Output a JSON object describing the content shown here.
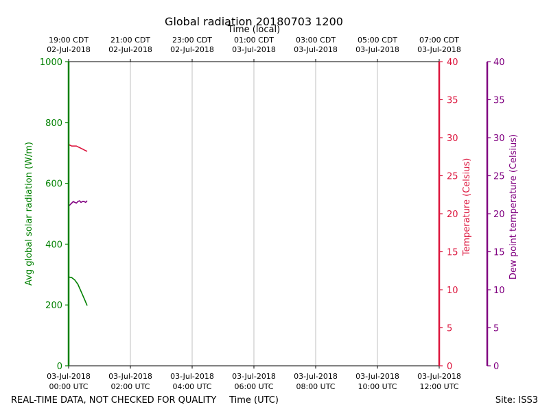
{
  "chart_data": {
    "type": "line",
    "title": "Global radiation 20180703 1200",
    "top_axis_label": "Time (local)",
    "xlabel": "Time (UTC)",
    "footer_left": "REAL-TIME DATA, NOT CHECKED FOR QUALITY",
    "footer_right": "Site: ISS3",
    "x_range_hours": [
      0,
      12
    ],
    "grid": "vertical",
    "top_ticks": [
      {
        "hour": 0,
        "line1": "19:00 CDT",
        "line2": "02-Jul-2018"
      },
      {
        "hour": 2,
        "line1": "21:00 CDT",
        "line2": "02-Jul-2018"
      },
      {
        "hour": 4,
        "line1": "23:00 CDT",
        "line2": "02-Jul-2018"
      },
      {
        "hour": 6,
        "line1": "01:00 CDT",
        "line2": "03-Jul-2018"
      },
      {
        "hour": 8,
        "line1": "03:00 CDT",
        "line2": "03-Jul-2018"
      },
      {
        "hour": 10,
        "line1": "05:00 CDT",
        "line2": "03-Jul-2018"
      },
      {
        "hour": 12,
        "line1": "07:00 CDT",
        "line2": "03-Jul-2018"
      }
    ],
    "bottom_ticks": [
      {
        "hour": 0,
        "line1": "03-Jul-2018",
        "line2": "00:00 UTC"
      },
      {
        "hour": 2,
        "line1": "03-Jul-2018",
        "line2": "02:00 UTC"
      },
      {
        "hour": 4,
        "line1": "03-Jul-2018",
        "line2": "04:00 UTC"
      },
      {
        "hour": 6,
        "line1": "03-Jul-2018",
        "line2": "06:00 UTC"
      },
      {
        "hour": 8,
        "line1": "03-Jul-2018",
        "line2": "08:00 UTC"
      },
      {
        "hour": 10,
        "line1": "03-Jul-2018",
        "line2": "10:00 UTC"
      },
      {
        "hour": 12,
        "line1": "03-Jul-2018",
        "line2": "12:00 UTC"
      }
    ],
    "axes": {
      "radiation": {
        "label": "Avg global solar radiation (W/m)",
        "ylim": [
          0,
          1000
        ],
        "ticks": [
          0,
          200,
          400,
          600,
          800,
          1000
        ],
        "color": "#008000"
      },
      "temperature": {
        "label": "Temperature (Celsius)",
        "ylim": [
          0,
          40
        ],
        "ticks": [
          0,
          5,
          10,
          15,
          20,
          25,
          30,
          35,
          40
        ],
        "color": "#dc143c"
      },
      "dewpoint": {
        "label": "Dew point temperature (Celsius)",
        "ylim": [
          0,
          40
        ],
        "ticks": [
          0,
          5,
          10,
          15,
          20,
          25,
          30,
          35,
          40
        ],
        "color": "#800080"
      }
    },
    "series": [
      {
        "axis": "radiation",
        "color": "#008000",
        "x": [
          0,
          0.1,
          0.2,
          0.3,
          0.4,
          0.5,
          0.6
        ],
        "y": [
          292,
          290,
          282,
          268,
          245,
          222,
          198
        ]
      },
      {
        "axis": "temperature",
        "color": "#dc143c",
        "x": [
          0,
          0.05,
          0.1,
          0.15,
          0.2,
          0.25,
          0.3,
          0.35,
          0.4,
          0.45,
          0.5,
          0.55,
          0.6
        ],
        "y": [
          29.1,
          29.0,
          28.9,
          28.9,
          28.9,
          28.9,
          28.8,
          28.7,
          28.6,
          28.5,
          28.4,
          28.3,
          28.2
        ]
      },
      {
        "axis": "dewpoint",
        "color": "#800080",
        "x": [
          0,
          0.05,
          0.1,
          0.15,
          0.2,
          0.25,
          0.3,
          0.35,
          0.4,
          0.45,
          0.5,
          0.55,
          0.6
        ],
        "y": [
          21.0,
          21.2,
          21.4,
          21.6,
          21.5,
          21.4,
          21.6,
          21.7,
          21.5,
          21.6,
          21.6,
          21.5,
          21.7
        ]
      }
    ]
  }
}
